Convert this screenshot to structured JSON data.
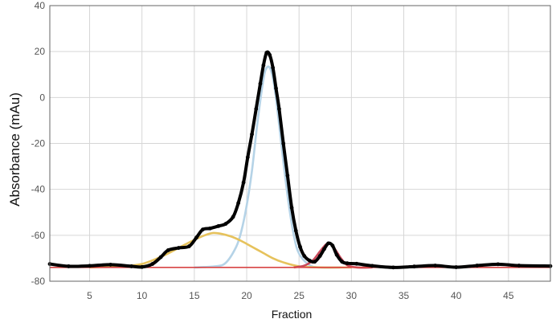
{
  "chart_data": {
    "type": "scatter",
    "title": "",
    "xlabel": "Fraction",
    "ylabel": "Absorbance (mAu)",
    "xlim": [
      1.2,
      49
    ],
    "ylim": [
      -80,
      40
    ],
    "xticks": [
      5,
      10,
      15,
      20,
      25,
      30,
      35,
      40,
      45
    ],
    "yticks": [
      -80,
      -60,
      -40,
      -20,
      0,
      20,
      40
    ],
    "grid": true,
    "legend": "none",
    "colors": {
      "data": "#000000",
      "fit_1": "#b5d3e7",
      "fit_2": "#e6c25c",
      "fit_3": "#c8495a",
      "baseline": "#d84545"
    },
    "baseline_level": -74,
    "series": [
      {
        "role": "measured",
        "style": "markers",
        "color": "#000000",
        "x": [
          1.2,
          3,
          5,
          7,
          9,
          10,
          11,
          11.8,
          12.5,
          13.5,
          14.5,
          15.2,
          15.8,
          16.5,
          17.3,
          18.0,
          18.7,
          19.2,
          19.7,
          20.1,
          20.5,
          20.9,
          21.3,
          21.6,
          21.9,
          22.2,
          22.5,
          22.8,
          23.1,
          23.5,
          23.9,
          24.3,
          24.7,
          25.1,
          25.5,
          26.0,
          26.5,
          27.0,
          27.4,
          27.8,
          28.2,
          28.6,
          29.1,
          29.6,
          30.5,
          32,
          34,
          36,
          38,
          40,
          42,
          44,
          46,
          49
        ],
        "y": [
          -72.5,
          -73.5,
          -73.3,
          -72.8,
          -73.5,
          -73.8,
          -72.5,
          -69.5,
          -66.5,
          -65.5,
          -64.8,
          -61,
          -57.5,
          -57,
          -56,
          -55,
          -52,
          -46,
          -37,
          -26,
          -16,
          -5,
          6,
          14,
          19.5,
          18.5,
          13,
          4,
          -5,
          -20,
          -34,
          -48,
          -58,
          -65,
          -69,
          -71,
          -71.5,
          -69,
          -66,
          -63.5,
          -64.5,
          -68.5,
          -71.5,
          -72.2,
          -72.4,
          -73.3,
          -74,
          -73.6,
          -73.2,
          -73.9,
          -73.2,
          -72.6,
          -73.2,
          -73.4
        ]
      },
      {
        "role": "fit",
        "style": "line",
        "color": "#b5d3e7",
        "x": [
          15,
          17,
          18,
          19,
          19.5,
          20,
          20.5,
          21,
          21.5,
          21.8,
          22.2,
          22.6,
          23,
          23.5,
          24,
          24.5,
          25,
          26,
          27,
          29
        ],
        "y": [
          -74,
          -73.5,
          -72,
          -65,
          -58,
          -47,
          -32,
          -12,
          5,
          12,
          13,
          6,
          -8,
          -28,
          -46,
          -60,
          -68,
          -73,
          -74,
          -74
        ]
      },
      {
        "role": "fit",
        "style": "line",
        "color": "#e6c25c",
        "x": [
          5,
          8,
          10,
          12,
          13.5,
          15,
          16,
          16.8,
          17.5,
          18.5,
          19.5,
          20.5,
          21.5,
          22.5,
          23.5,
          25,
          27,
          30
        ],
        "y": [
          -74,
          -73.5,
          -72.5,
          -69,
          -65.5,
          -62,
          -60,
          -59,
          -59.3,
          -60.5,
          -62.5,
          -65,
          -67.5,
          -70,
          -71.8,
          -73.5,
          -74,
          -74
        ]
      },
      {
        "role": "fit",
        "style": "line",
        "color": "#c8495a",
        "x": [
          24.5,
          25.5,
          26.3,
          27,
          27.5,
          27.8,
          28.1,
          28.5,
          29,
          29.6,
          30.5,
          32
        ],
        "y": [
          -74,
          -73.2,
          -71,
          -67,
          -64.3,
          -63.5,
          -64.2,
          -66.5,
          -70,
          -73,
          -74,
          -74
        ]
      }
    ]
  }
}
